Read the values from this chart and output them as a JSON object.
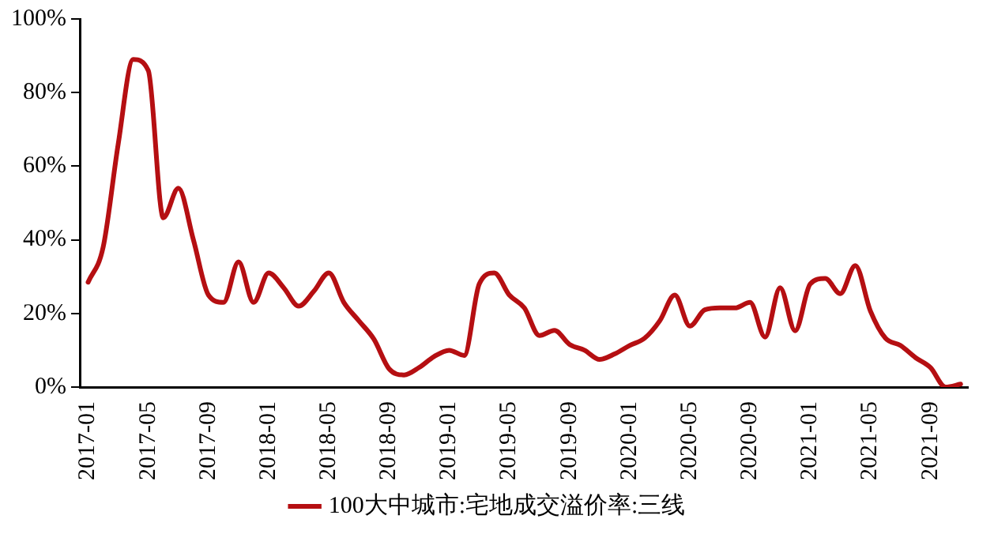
{
  "chart_data": {
    "type": "line",
    "categories": [
      "2017-01",
      null,
      null,
      null,
      "2017-05",
      null,
      null,
      null,
      "2017-09",
      null,
      null,
      null,
      "2018-01",
      null,
      null,
      null,
      "2018-05",
      null,
      null,
      null,
      "2018-09",
      null,
      null,
      null,
      "2019-01",
      null,
      null,
      null,
      "2019-05",
      null,
      null,
      null,
      "2019-09",
      null,
      null,
      null,
      "2020-01",
      null,
      null,
      null,
      "2020-05",
      null,
      null,
      null,
      "2020-09",
      null,
      null,
      null,
      "2021-01",
      null,
      null,
      null,
      "2021-05",
      null,
      null,
      null,
      "2021-09",
      null,
      null
    ],
    "series": [
      {
        "name": "100大中城市:宅地成交溢价率:三线",
        "color": "#b50f12",
        "values": [
          28.5,
          38,
          66,
          89,
          86,
          46,
          54,
          40,
          25,
          23,
          34,
          23,
          31,
          27,
          22,
          26,
          31,
          23,
          18,
          13,
          5,
          3.3,
          5.3,
          8.3,
          10,
          8.6,
          28,
          31,
          25,
          21.5,
          14,
          15.4,
          11.6,
          10,
          7.5,
          9,
          11.3,
          13.3,
          18,
          25,
          16.6,
          21,
          21.5,
          21.5,
          23,
          13.6,
          27,
          15.3,
          28,
          29.5,
          25.4,
          33,
          20.7,
          13.3,
          11.3,
          8,
          5.3,
          0,
          0.8
        ]
      }
    ],
    "ylim": [
      0,
      100
    ],
    "yticks": [
      {
        "value": 0,
        "label": "0%"
      },
      {
        "value": 20,
        "label": "20%"
      },
      {
        "value": 40,
        "label": "40%"
      },
      {
        "value": 60,
        "label": "60%"
      },
      {
        "value": 80,
        "label": "80%"
      },
      {
        "value": 100,
        "label": "100%"
      }
    ],
    "grid": false,
    "legend": "bottom",
    "marker": "none",
    "line_style": "solid"
  }
}
